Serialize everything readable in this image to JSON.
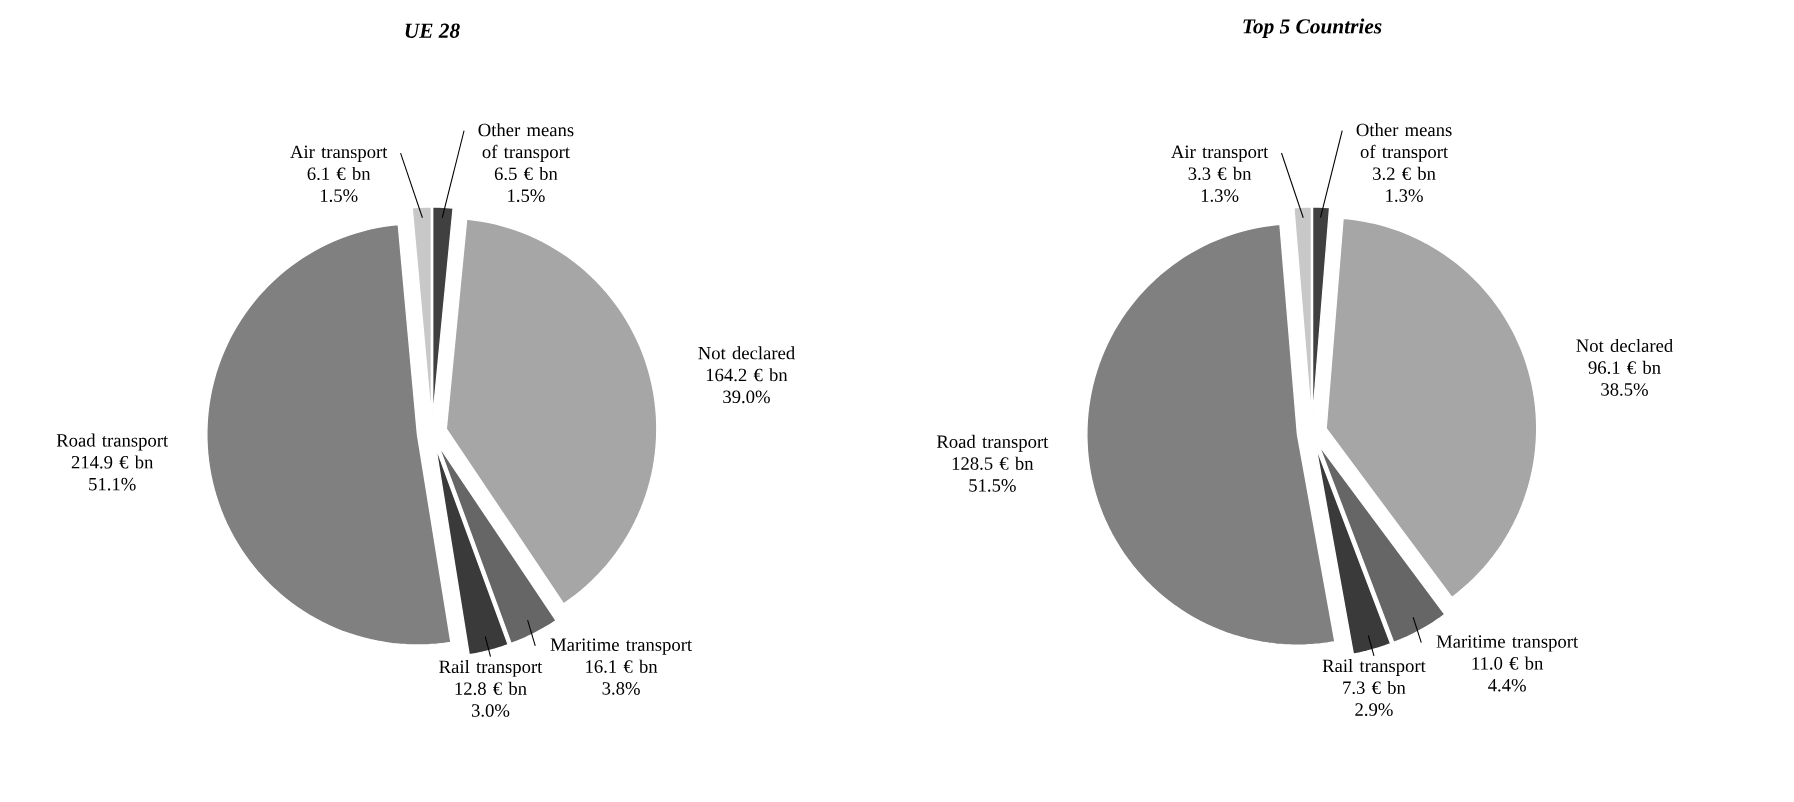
{
  "chart_data": [
    {
      "type": "pie",
      "title": "UE 28",
      "categories": [
        "Other means of transport",
        "Not declared",
        "Maritime transport",
        "Rail transport",
        "Road transport",
        "Air transport"
      ],
      "values": [
        6.5,
        164.2,
        16.1,
        12.8,
        214.9,
        6.1
      ],
      "colors": [
        "#404040",
        "#a6a6a6",
        "#666666",
        "#3a3a3a",
        "#808080",
        "#c8c8c8"
      ],
      "value_labels": [
        "6.5 € bn",
        "164.2 € bn",
        "16.1 € bn",
        "12.8 € bn",
        "214.9 € bn",
        "6.1 € bn"
      ],
      "annotations": [
        "1.5%",
        "39.0%",
        "3.8%",
        "3.0%",
        "51.1%",
        "1.5%"
      ]
    },
    {
      "type": "pie",
      "title": "Top 5 Countries",
      "categories": [
        "Other means of transport",
        "Not declared",
        "Maritime transport",
        "Rail transport",
        "Road transport",
        "Air transport"
      ],
      "values": [
        3.2,
        96.1,
        11.0,
        7.3,
        128.5,
        3.3
      ],
      "colors": [
        "#404040",
        "#a6a6a6",
        "#666666",
        "#3a3a3a",
        "#808080",
        "#c8c8c8"
      ],
      "value_labels": [
        "3.2 € bn",
        "96.1 € bn",
        "11.0 € bn",
        "7.3 € bn",
        "128.5 € bn",
        "3.3 € bn"
      ],
      "annotations": [
        "1.3%",
        "38.5%",
        "4.4%",
        "2.9%",
        "51.5%",
        "1.3%"
      ]
    }
  ]
}
